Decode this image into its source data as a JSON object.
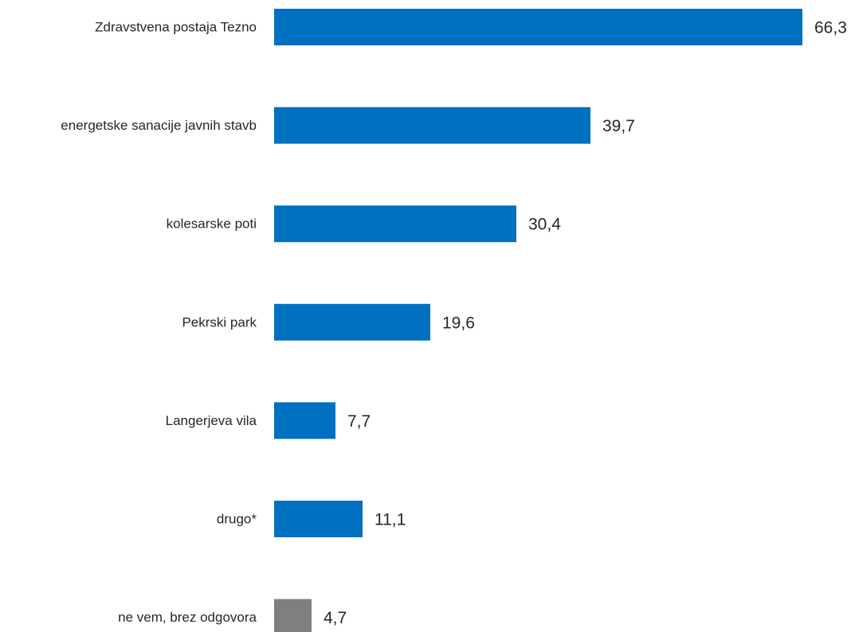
{
  "chart_data": {
    "type": "bar",
    "orientation": "horizontal",
    "title": "",
    "xlabel": "",
    "ylabel": "",
    "categories": [
      "Zdravstvena postaja Tezno",
      "energetske sanacije javnih stavb",
      "kolesarske poti",
      "Pekrski park",
      "Langerjeva vila",
      "drugo*",
      "ne vem, brez odgovora"
    ],
    "values": [
      66.3,
      39.7,
      30.4,
      19.6,
      7.7,
      11.1,
      4.7
    ],
    "value_labels": [
      "66,3",
      "39,7",
      "30,4",
      "19,6",
      "7,7",
      "11,1",
      "4,7"
    ],
    "colors": [
      "#0070C0",
      "#0070C0",
      "#0070C0",
      "#0070C0",
      "#0070C0",
      "#0070C0",
      "#7F7F7F"
    ],
    "xlim": [
      0,
      66.3
    ],
    "grid": false,
    "legend": "none"
  }
}
